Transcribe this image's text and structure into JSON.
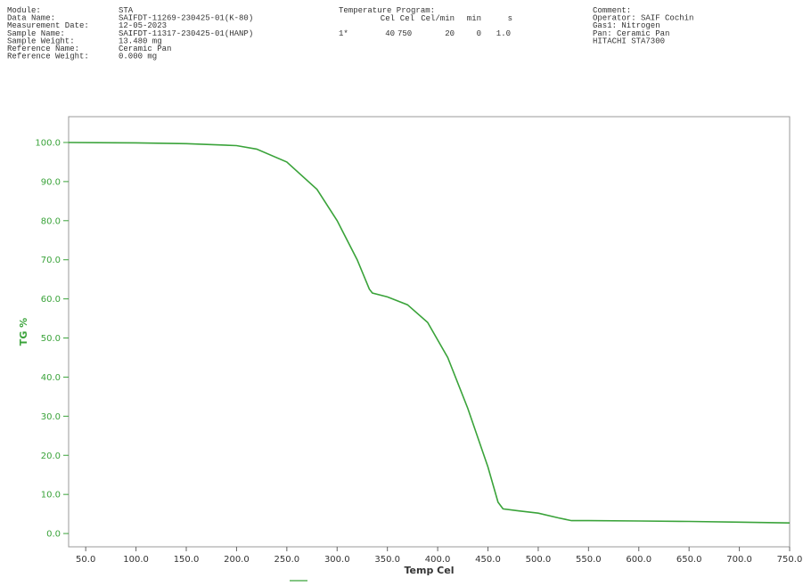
{
  "report_header": {
    "left": [
      [
        "Module:",
        "STA"
      ],
      [
        "Data Name:",
        "SAIFDT-11269-230425-01(K-80)"
      ],
      [
        "Measurement Date:",
        "12-05-2023"
      ],
      [
        "Sample Name:",
        "SAIFDT-11317-230425-01(HANP)"
      ],
      [
        "Sample Weight:",
        "13.480 mg"
      ],
      [
        "Reference Name:",
        "Ceramic Pan"
      ],
      [
        "Reference Weight:",
        "0.000 mg"
      ]
    ],
    "program_title": "Temperature Program:",
    "program_columns": [
      "Cel",
      "Cel",
      "Cel/min",
      "min",
      "s"
    ],
    "program_row": [
      "1*",
      "40",
      "750",
      "20",
      "0",
      "1.0"
    ],
    "right": [
      "Comment:",
      "Operator: SAIF Cochin",
      "Gas1: Nitrogen",
      "Pan: Ceramic Pan",
      "HITACHI STA7300"
    ]
  },
  "chart_data": {
    "type": "line",
    "x_label": "Temp Cel",
    "y_label": "TG %",
    "x": [
      33,
      100,
      150,
      200,
      220,
      250,
      280,
      300,
      320,
      332,
      335,
      350,
      370,
      390,
      410,
      430,
      450,
      460,
      465,
      480,
      500,
      520,
      533,
      550,
      600,
      650,
      700,
      750
    ],
    "series": [
      {
        "color": "#3aa33a",
        "values": [
          100,
          99.9,
          99.7,
          99.2,
          98.3,
          95,
          88,
          80,
          70,
          62.5,
          61.5,
          60.5,
          58.5,
          54,
          45,
          32,
          17,
          8,
          6.3,
          5.8,
          5.2,
          4,
          3.3,
          3.3,
          3.2,
          3.1,
          2.9,
          2.7
        ]
      }
    ],
    "xlim": [
      33,
      750
    ],
    "ylim": [
      -3.4,
      106.6
    ],
    "xticks": [
      {
        "value": 50,
        "label": "50.0"
      },
      {
        "value": 100,
        "label": "100.0"
      },
      {
        "value": 150,
        "label": "150.0"
      },
      {
        "value": 200,
        "label": "200.0"
      },
      {
        "value": 250,
        "label": "250.0"
      },
      {
        "value": 300,
        "label": "300.0"
      },
      {
        "value": 350,
        "label": "350.0"
      },
      {
        "value": 400,
        "label": "400.0"
      },
      {
        "value": 450,
        "label": "450.0"
      },
      {
        "value": 500,
        "label": "500.0"
      },
      {
        "value": 550,
        "label": "550.0"
      },
      {
        "value": 600,
        "label": "600.0"
      },
      {
        "value": 650,
        "label": "650.0"
      },
      {
        "value": 700,
        "label": "700.0"
      },
      {
        "value": 750,
        "label": "750.0"
      }
    ],
    "yticks": [
      {
        "value": 0,
        "label": "0.0"
      },
      {
        "value": 10,
        "label": "10.0"
      },
      {
        "value": 20,
        "label": "20.0"
      },
      {
        "value": 30,
        "label": "30.0"
      },
      {
        "value": 40,
        "label": "40.0"
      },
      {
        "value": 50,
        "label": "50.0"
      },
      {
        "value": 60,
        "label": "60.0"
      },
      {
        "value": 70,
        "label": "70.0"
      },
      {
        "value": 80,
        "label": "80.0"
      },
      {
        "value": 90,
        "label": "90.0"
      },
      {
        "value": 100,
        "label": "100.0"
      }
    ],
    "axis_color": "#3aa33a"
  }
}
